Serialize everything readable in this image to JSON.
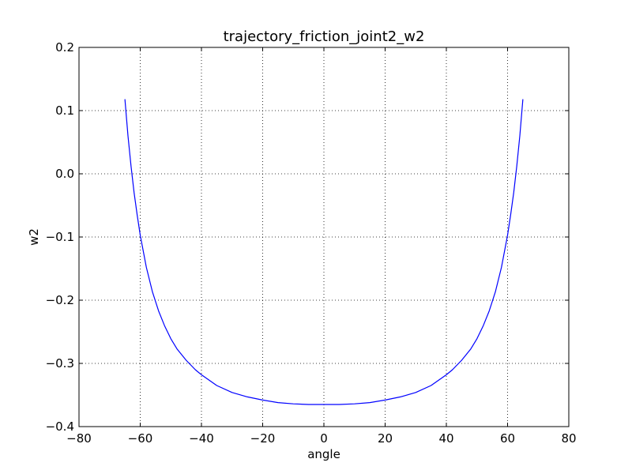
{
  "chart_data": {
    "type": "line",
    "title": "trajectory_friction_joint2_w2",
    "xlabel": "angle",
    "ylabel": "w2",
    "xlim": [
      -80,
      80
    ],
    "ylim": [
      -0.4,
      0.2
    ],
    "x_ticks": [
      -80,
      -60,
      -40,
      -20,
      0,
      20,
      40,
      60,
      80
    ],
    "x_tick_labels": [
      "−80",
      "−60",
      "−40",
      "−20",
      "0",
      "20",
      "40",
      "60",
      "80"
    ],
    "y_ticks": [
      -0.4,
      -0.3,
      -0.2,
      -0.1,
      0.0,
      0.1,
      0.2
    ],
    "y_tick_labels": [
      "−0.4",
      "−0.3",
      "−0.2",
      "−0.1",
      "0.0",
      "0.1",
      "0.2"
    ],
    "grid": true,
    "grid_style": "dotted",
    "series": [
      {
        "color": "#0000ff",
        "x": [
          -65,
          -64,
          -63,
          -62,
          -61,
          -60,
          -58,
          -56,
          -54,
          -52,
          -50,
          -48,
          -45,
          -42,
          -40,
          -35,
          -30,
          -25,
          -20,
          -15,
          -10,
          -5,
          0,
          5,
          10,
          15,
          20,
          25,
          30,
          35,
          40,
          42,
          45,
          48,
          50,
          52,
          54,
          56,
          58,
          60,
          61,
          62,
          63,
          64,
          65
        ],
        "y": [
          0.118,
          0.06,
          0.012,
          -0.03,
          -0.065,
          -0.097,
          -0.148,
          -0.187,
          -0.217,
          -0.241,
          -0.261,
          -0.277,
          -0.295,
          -0.31,
          -0.318,
          -0.335,
          -0.346,
          -0.353,
          -0.358,
          -0.362,
          -0.364,
          -0.365,
          -0.365,
          -0.365,
          -0.364,
          -0.362,
          -0.358,
          -0.353,
          -0.346,
          -0.335,
          -0.318,
          -0.31,
          -0.295,
          -0.277,
          -0.261,
          -0.241,
          -0.217,
          -0.187,
          -0.148,
          -0.097,
          -0.065,
          -0.03,
          0.012,
          0.06,
          0.118
        ]
      }
    ]
  }
}
